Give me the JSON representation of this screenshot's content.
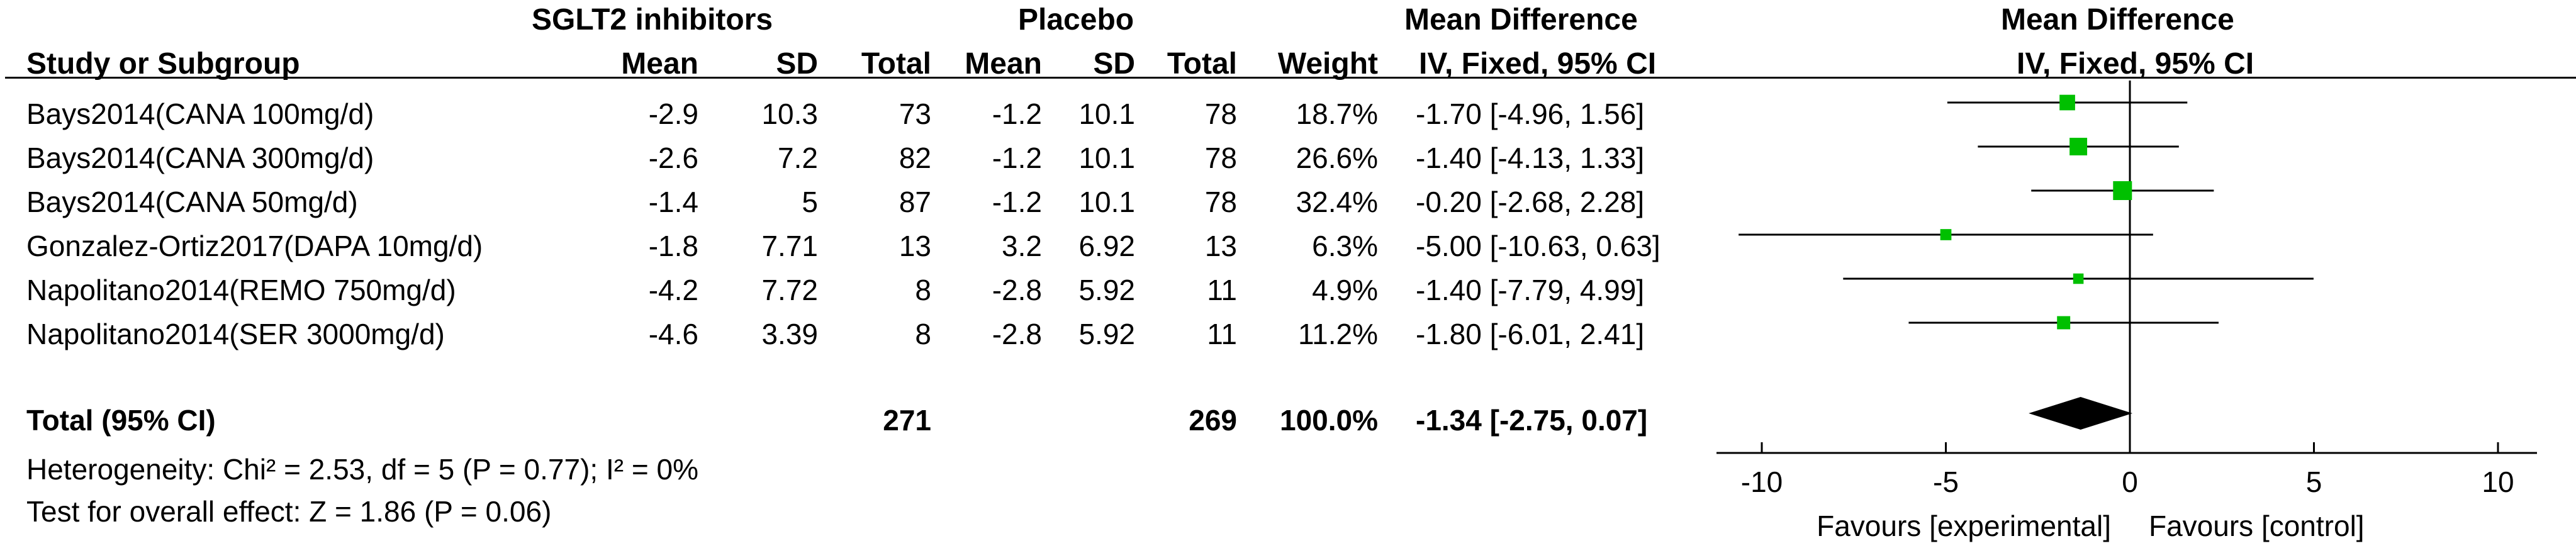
{
  "header": {
    "group_left": "SGLT2 inhibitors",
    "group_right": "Placebo",
    "effect_top": "Mean Difference",
    "effect_sub": "IV, Fixed, 95% CI",
    "plot_top": "Mean Difference",
    "plot_sub": "IV, Fixed, 95% CI",
    "study_col": "Study or Subgroup",
    "mean1": "Mean",
    "sd1": "SD",
    "total1": "Total",
    "mean2": "Mean",
    "sd2": "SD",
    "total2": "Total",
    "weight": "Weight"
  },
  "studies": [
    {
      "name": "Bays2014(CANA 100mg/d)",
      "mean1": "-2.9",
      "sd1": "10.3",
      "total1": "73",
      "mean2": "-1.2",
      "sd2": "10.1",
      "total2": "78",
      "weight": "18.7%",
      "ci": "-1.70 [-4.96, 1.56]"
    },
    {
      "name": "Bays2014(CANA 300mg/d)",
      "mean1": "-2.6",
      "sd1": "7.2",
      "total1": "82",
      "mean2": "-1.2",
      "sd2": "10.1",
      "total2": "78",
      "weight": "26.6%",
      "ci": "-1.40 [-4.13, 1.33]"
    },
    {
      "name": "Bays2014(CANA 50mg/d)",
      "mean1": "-1.4",
      "sd1": "5",
      "total1": "87",
      "mean2": "-1.2",
      "sd2": "10.1",
      "total2": "78",
      "weight": "32.4%",
      "ci": "-0.20 [-2.68, 2.28]"
    },
    {
      "name": "Gonzalez-Ortiz2017(DAPA 10mg/d)",
      "mean1": "-1.8",
      "sd1": "7.71",
      "total1": "13",
      "mean2": "3.2",
      "sd2": "6.92",
      "total2": "13",
      "weight": "6.3%",
      "ci": "-5.00 [-10.63, 0.63]"
    },
    {
      "name": "Napolitano2014(REMO 750mg/d)",
      "mean1": "-4.2",
      "sd1": "7.72",
      "total1": "8",
      "mean2": "-2.8",
      "sd2": "5.92",
      "total2": "11",
      "weight": "4.9%",
      "ci": "-1.40 [-7.79, 4.99]"
    },
    {
      "name": "Napolitano2014(SER 3000mg/d)",
      "mean1": "-4.6",
      "sd1": "3.39",
      "total1": "8",
      "mean2": "-2.8",
      "sd2": "5.92",
      "total2": "11",
      "weight": "11.2%",
      "ci": "-1.80 [-6.01, 2.41]"
    }
  ],
  "total": {
    "label": "Total (95% CI)",
    "total1": "271",
    "total2": "269",
    "weight": "100.0%",
    "ci": "-1.34 [-2.75, 0.07]"
  },
  "heterogeneity": "Heterogeneity: Chi² = 2.53, df = 5 (P = 0.77); I² = 0%",
  "overall_effect": "Test for overall effect: Z = 1.86 (P = 0.06)",
  "chart_data": {
    "type": "scatter",
    "subtype": "forest-plot",
    "title": "Mean Difference",
    "subtitle": "IV, Fixed, 95% CI",
    "xlim": [
      -10,
      10
    ],
    "xticks": [
      "-10",
      "-5",
      "0",
      "5",
      "10"
    ],
    "xtick_values": [
      -10,
      -5,
      0,
      5,
      10
    ],
    "xlabel_left": "Favours [experimental]",
    "xlabel_right": "Favours [control]",
    "points": [
      {
        "md": -1.7,
        "lo": -4.96,
        "hi": 1.56,
        "weight": 18.7
      },
      {
        "md": -1.4,
        "lo": -4.13,
        "hi": 1.33,
        "weight": 26.6
      },
      {
        "md": -0.2,
        "lo": -2.68,
        "hi": 2.28,
        "weight": 32.4
      },
      {
        "md": -5.0,
        "lo": -10.63,
        "hi": 0.63,
        "weight": 6.3
      },
      {
        "md": -1.4,
        "lo": -7.79,
        "hi": 4.99,
        "weight": 4.9
      },
      {
        "md": -1.8,
        "lo": -6.01,
        "hi": 2.41,
        "weight": 11.2
      }
    ],
    "pooled": {
      "md": -1.34,
      "lo": -2.75,
      "hi": 0.07
    },
    "marker_color": "#00c000",
    "diamond_color": "#000000"
  }
}
